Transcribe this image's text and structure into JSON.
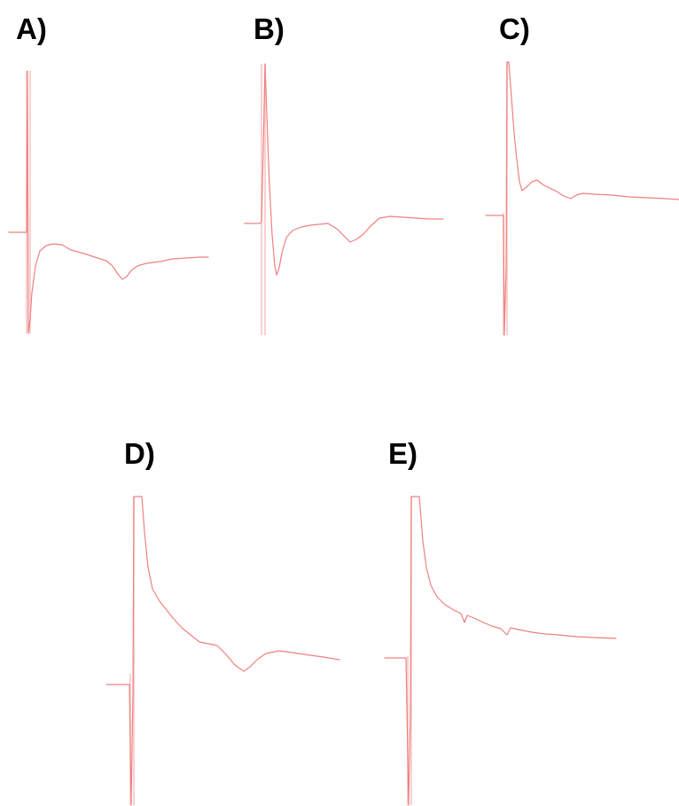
{
  "trace_color": "#f08080",
  "chart_data": [
    {
      "type": "line",
      "panel": "A)",
      "label": "A)"
    },
    {
      "type": "line",
      "panel": "B)",
      "label": "B)"
    },
    {
      "type": "line",
      "panel": "C)",
      "label": "C)"
    },
    {
      "type": "line",
      "panel": "D)",
      "label": "D)"
    },
    {
      "type": "line",
      "panel": "E)",
      "label": "E)"
    }
  ]
}
